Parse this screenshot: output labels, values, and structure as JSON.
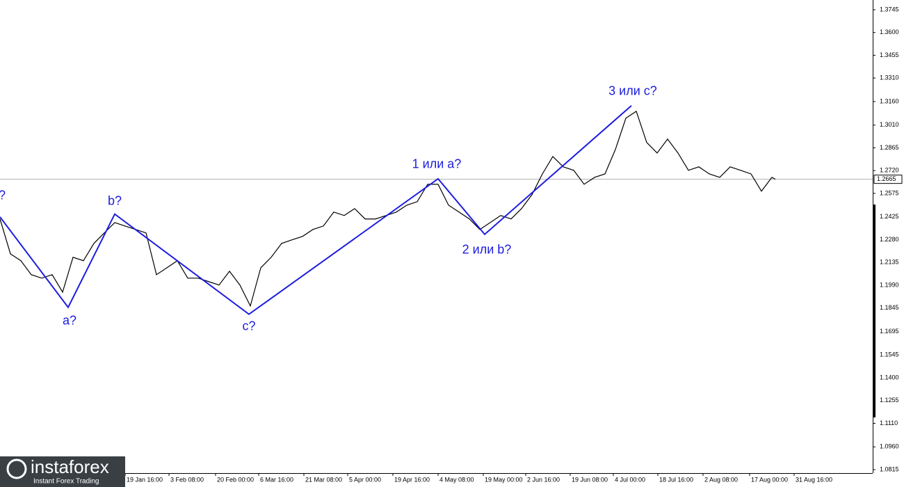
{
  "chart_data": {
    "type": "line",
    "series": [
      {
        "color": "#000000",
        "x": [
          0,
          15,
          30,
          45,
          60,
          75,
          90,
          105,
          120,
          135,
          150,
          165,
          180,
          195,
          210,
          225,
          240,
          255,
          270,
          285,
          300,
          315,
          330,
          345,
          360,
          375,
          390,
          405,
          420,
          435,
          450,
          465,
          480,
          495,
          510,
          525,
          540,
          555,
          570,
          585,
          600,
          615,
          630,
          645,
          660,
          675,
          690,
          705,
          720,
          735,
          750,
          765,
          780,
          795,
          810,
          825,
          840,
          855,
          870,
          885,
          900,
          915,
          930,
          945,
          960,
          975,
          990,
          1005,
          1020,
          1035,
          1050,
          1065,
          1080,
          1095,
          1110,
          1115
        ],
        "values": [
          1.2412,
          1.219,
          1.2146,
          1.2057,
          1.2035,
          1.2057,
          1.1946,
          1.2168,
          1.2146,
          1.2256,
          1.2323,
          1.2389,
          1.2367,
          1.2345,
          1.2323,
          1.2057,
          1.2101,
          1.2146,
          1.2035,
          1.2035,
          1.2013,
          1.1991,
          1.2079,
          1.1991,
          1.1858,
          1.2101,
          1.2168,
          1.2256,
          1.2279,
          1.2301,
          1.2345,
          1.2367,
          1.2456,
          1.2434,
          1.2478,
          1.2412,
          1.2412,
          1.2434,
          1.2456,
          1.25,
          1.2522,
          1.2633,
          1.2633,
          1.25,
          1.2456,
          1.2412,
          1.2345,
          1.2389,
          1.2434,
          1.2412,
          1.2478,
          1.2567,
          1.2699,
          1.281,
          1.2744,
          1.2722,
          1.2633,
          1.2677,
          1.2699,
          1.2855,
          1.3054,
          1.3098,
          1.2899,
          1.2832,
          1.2921,
          1.2832,
          1.2722,
          1.2744,
          1.2699,
          1.2677,
          1.2744,
          1.2722,
          1.2699,
          1.2589,
          1.2677,
          1.2665
        ]
      }
    ],
    "xlim": [
      0,
      1255
    ],
    "ylim": [
      1.0793,
      1.3807
    ],
    "xticks": [
      {
        "value": 180,
        "label": "19 Jan 16:00"
      },
      {
        "value": 243,
        "label": "3 Feb 08:00"
      },
      {
        "value": 310,
        "label": "20 Feb 00:00"
      },
      {
        "value": 372,
        "label": "6 Mar 16:00"
      },
      {
        "value": 437,
        "label": "21 Mar 08:00"
      },
      {
        "value": 500,
        "label": "5 Apr 00:00"
      },
      {
        "value": 565,
        "label": "19 Apr 16:00"
      },
      {
        "value": 630,
        "label": "4 May 08:00"
      },
      {
        "value": 695,
        "label": "19 May 00:00"
      },
      {
        "value": 756,
        "label": "2 Jun 16:00"
      },
      {
        "value": 820,
        "label": "19 Jun 08:00"
      },
      {
        "value": 882,
        "label": "4 Jul 00:00"
      },
      {
        "value": 946,
        "label": "18 Jul 16:00"
      },
      {
        "value": 1011,
        "label": "2 Aug 08:00"
      },
      {
        "value": 1078,
        "label": "17 Aug 00:00"
      },
      {
        "value": 1142,
        "label": "31 Aug 16:00"
      }
    ],
    "yticks": [
      1.3745,
      {
        "value": 1.36,
        "label": "1.3600"
      },
      1.3455,
      {
        "value": 1.331,
        "label": "1.3310"
      },
      {
        "value": 1.316,
        "label": "1.3160"
      },
      {
        "value": 1.301,
        "label": "1.3010"
      },
      1.2865,
      {
        "value": 1.272,
        "label": "1.2720"
      },
      1.2575,
      1.2425,
      {
        "value": 1.228,
        "label": "1.2280"
      },
      1.2135,
      {
        "value": 1.199,
        "label": "1.1990"
      },
      1.1845,
      1.1695,
      1.1545,
      {
        "value": 1.14,
        "label": "1.1400"
      },
      1.1255,
      {
        "value": 1.111,
        "label": "1.1110"
      },
      {
        "value": 1.096,
        "label": "1.0960"
      },
      1.0815
    ],
    "current_price": 1.2665,
    "waves": {
      "color": "#1c1ce0",
      "x": [
        0,
        98,
        165,
        358,
        630,
        697,
        908
      ],
      "values": [
        1.2425,
        1.1849,
        1.2443,
        1.1805,
        1.2668,
        1.2314,
        1.3134
      ]
    },
    "annotations": [
      {
        "text": "?",
        "x": 3,
        "y": 1.2558
      },
      {
        "text": "a?",
        "x": 100,
        "y": 1.176
      },
      {
        "text": "b?",
        "x": 165,
        "y": 1.2522
      },
      {
        "text": "c?",
        "x": 358,
        "y": 1.1725
      },
      {
        "text": "1 или a?",
        "x": 628,
        "y": 1.2757
      },
      {
        "text": "2 или b?",
        "x": 700,
        "y": 1.2212
      },
      {
        "text": "3 или c?",
        "x": 910,
        "y": 1.3222
      }
    ]
  },
  "branding": {
    "name": "instaforex",
    "tagline": "Instant Forex Trading"
  }
}
